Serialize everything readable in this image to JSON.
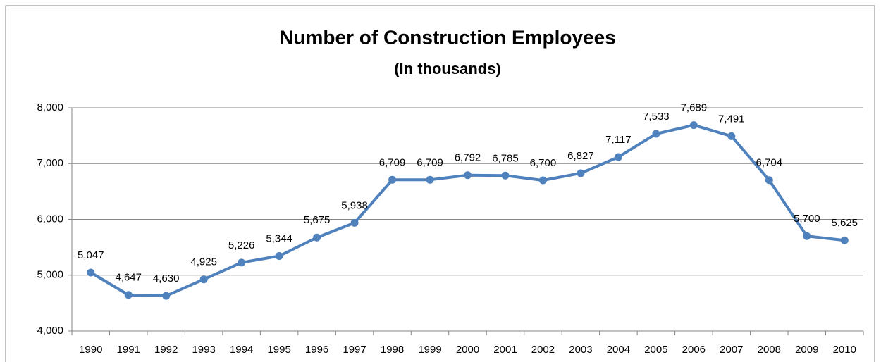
{
  "chart_data": {
    "type": "line",
    "title": "Number of Construction Employees",
    "subtitle": "(In thousands)",
    "categories": [
      "1990",
      "1991",
      "1992",
      "1993",
      "1994",
      "1995",
      "1996",
      "1997",
      "1998",
      "1999",
      "2000",
      "2001",
      "2002",
      "2003",
      "2004",
      "2005",
      "2006",
      "2007",
      "2008",
      "2009",
      "2010"
    ],
    "series": [
      {
        "name": "Construction Employees",
        "color": "#4f81bd",
        "values": [
          5047,
          4647,
          4630,
          4925,
          5226,
          5344,
          5675,
          5938,
          6709,
          6709,
          6792,
          6785,
          6700,
          6827,
          7117,
          7533,
          7689,
          7491,
          6704,
          5700,
          5625
        ],
        "value_labels": [
          "5,047",
          "4,647",
          "4,630",
          "4,925",
          "5,226",
          "5,344",
          "5,675",
          "5,938",
          "6,709",
          "6,709",
          "6,792",
          "6,785",
          "6,700",
          "6,827",
          "7,117",
          "7,533",
          "7,689",
          "7,491",
          "6,704",
          "5,700",
          "5,625"
        ]
      }
    ],
    "ylim": [
      4000,
      8000
    ],
    "yticks": [
      {
        "value": 4000,
        "label": "4,000"
      },
      {
        "value": 5000,
        "label": "5,000"
      },
      {
        "value": 6000,
        "label": "6,000"
      },
      {
        "value": 7000,
        "label": "7,000"
      },
      {
        "value": 8000,
        "label": "8,000"
      }
    ],
    "grid": true
  }
}
